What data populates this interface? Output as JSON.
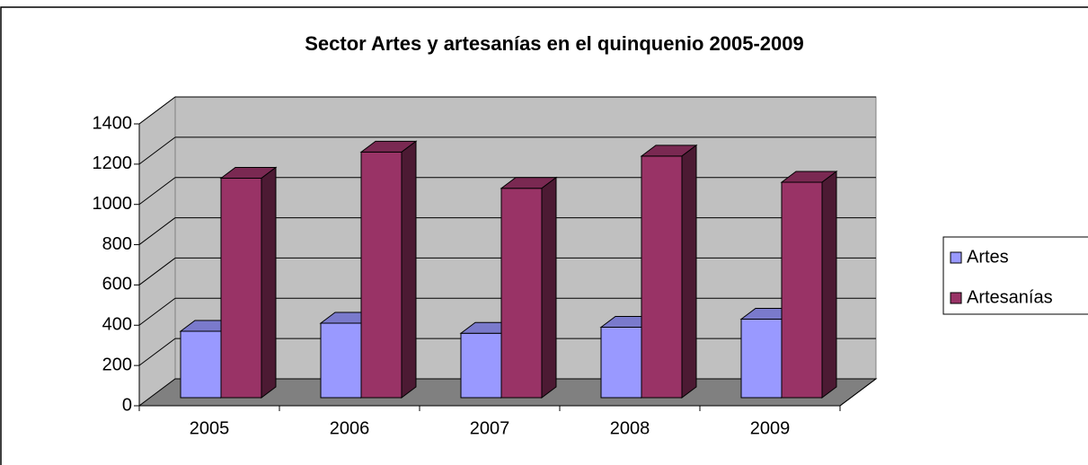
{
  "chart_data": {
    "type": "bar3d",
    "title": "Sector Artes y artesanías en el quinquenio 2005-2009",
    "categories": [
      "2005",
      "2006",
      "2007",
      "2008",
      "2009"
    ],
    "series": [
      {
        "name": "Artes",
        "color": "#9999ff",
        "values": [
          330,
          370,
          320,
          350,
          390
        ]
      },
      {
        "name": "Artesanías",
        "color": "#993366",
        "values": [
          1090,
          1220,
          1040,
          1200,
          1070
        ]
      }
    ],
    "ylim": [
      0,
      1400
    ],
    "yticks": [
      0,
      200,
      400,
      600,
      800,
      1000,
      1200,
      1400
    ],
    "grid": true,
    "legend": "right"
  }
}
